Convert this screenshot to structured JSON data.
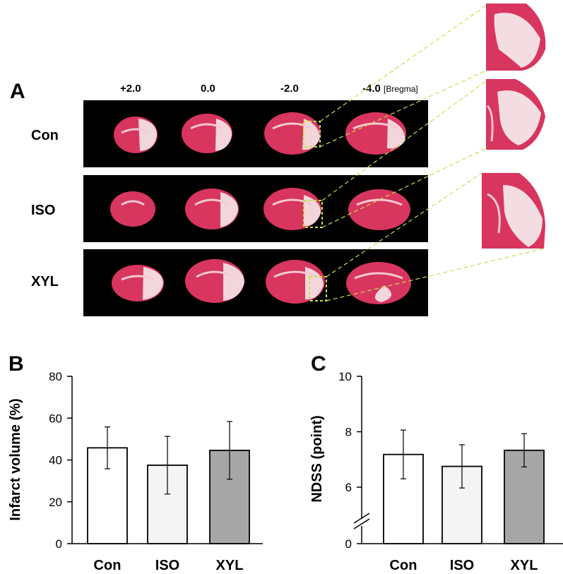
{
  "panel_a": {
    "letter": "A",
    "bregma_positions": [
      "+2.0",
      "0.0",
      "-2.0",
      "-4.0"
    ],
    "bregma_unit": "[Bregma]",
    "rows": [
      "Con",
      "ISO",
      "XYL"
    ]
  },
  "colors": {
    "tissue": "#d8355f",
    "infarct": "#f2d6dc",
    "zoom_lines": "#c6e24a",
    "bar_con": "#ffffff",
    "bar_iso": "#f4f4f4",
    "bar_xyl": "#a6a6a6"
  },
  "chart_data": [
    {
      "panel": "B",
      "type": "bar",
      "categories": [
        "Con",
        "ISO",
        "XYL"
      ],
      "values": [
        45.8,
        37.5,
        44.6
      ],
      "errors": [
        10,
        13.8,
        13.8
      ],
      "ylabel": "Infarct volume (%)",
      "ylim": [
        0,
        80
      ],
      "yticks": [
        "0",
        "20",
        "40",
        "60",
        "80"
      ],
      "grid": false
    },
    {
      "panel": "C",
      "type": "bar",
      "categories": [
        "Con",
        "ISO",
        "XYL"
      ],
      "values": [
        7.18,
        6.75,
        7.33
      ],
      "errors": [
        0.88,
        0.78,
        0.6
      ],
      "ylabel": "NDSS (point)",
      "axis_break": true,
      "yticks": [
        "0",
        "6",
        "8",
        "10"
      ],
      "grid": false
    }
  ]
}
